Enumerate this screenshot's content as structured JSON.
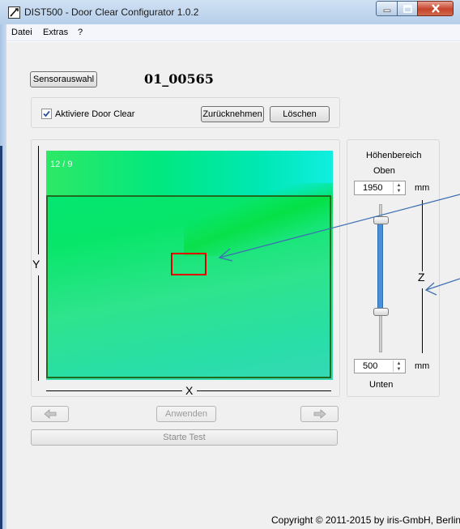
{
  "window": {
    "title": "DIST500 - Door Clear Configurator 1.0.2",
    "app_icon": "pen-tablet-icon",
    "controls": {
      "minimize": "minimize-icon",
      "maximize": "maximize-icon",
      "close": "close-icon"
    }
  },
  "menu": {
    "items": [
      "Datei",
      "Extras",
      "?"
    ]
  },
  "sensor": {
    "select_label": "Sensorauswahl",
    "id": "01_00565"
  },
  "door_clear": {
    "activate_label": "Aktiviere Door Clear",
    "checked": true,
    "revert_label": "Zurücknehmen",
    "delete_label": "Löschen"
  },
  "view": {
    "resolution_label": "12 / 9",
    "x_axis": "X",
    "y_axis": "Y",
    "heatmap_colors": [
      "#00e676",
      "#2ee48c",
      "#10eee0"
    ],
    "roi_color": "#1f6b1f",
    "target_color": "#e00000"
  },
  "height_range": {
    "title_line1": "Höhenbereich",
    "upper_label": "Oben",
    "upper_value": "1950",
    "lower_value": "500",
    "lower_label": "Unten",
    "unit_upper": "mm",
    "unit_lower": "mm",
    "z_axis": "Z",
    "slider_min_fraction": 0.3,
    "slider_max_fraction": 0.92,
    "range_color": "#4a90d9"
  },
  "controls": {
    "prev_icon": "arrow-left-icon",
    "apply_label": "Anwenden",
    "next_icon": "arrow-right-icon",
    "test_label": "Starte Test"
  },
  "footer": {
    "copyright": "Copyright © 2011-2015 by iris-GmbH, Berlin"
  }
}
